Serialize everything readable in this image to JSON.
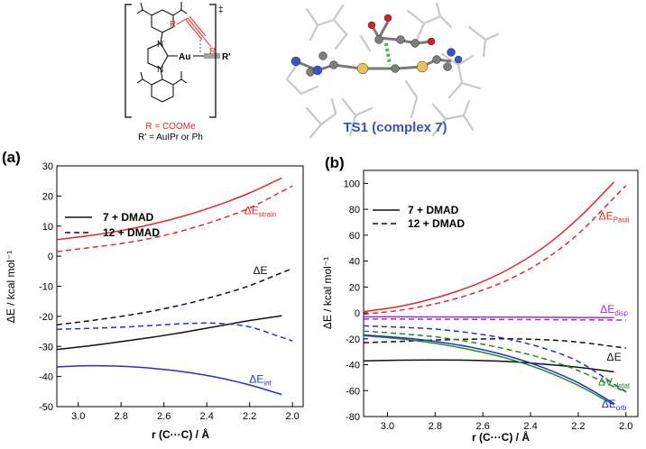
{
  "scheme": {
    "r_label": "R",
    "au_label": "Au",
    "rprime_label": "R'",
    "dagger": "‡",
    "caption_r": "R = COOMe",
    "caption_rprime": "R' = AuIPr or Ph"
  },
  "ts_label": "TS1 (complex 7)",
  "panel_a_label": "(a)",
  "panel_b_label": "(b)",
  "colors": {
    "red": "#e8262a",
    "blue": "#2630c8",
    "black": "#111111",
    "purple": "#9b30d0",
    "green": "#1f8a1f",
    "ts_blue": "#3a4fc4"
  },
  "chart_data": [
    {
      "type": "line",
      "panel": "(a)",
      "xlabel": "r (C···C) / Å",
      "ylabel": "ΔE / kcal mol⁻¹",
      "xlim": [
        3.1,
        1.95
      ],
      "ylim": [
        -50,
        30
      ],
      "xticks": [
        "3.0",
        "2.8",
        "2.6",
        "2.4",
        "2.2",
        "2.0"
      ],
      "yticks": [
        "30",
        "20",
        "10",
        "0",
        "-10",
        "-20",
        "-30",
        "-40",
        "-50"
      ],
      "legend": {
        "placement": "top-left",
        "solid": "7 + DMAD",
        "dashed": "12 + DMAD"
      },
      "x": [
        3.1,
        2.95,
        2.8,
        2.65,
        2.5,
        2.35,
        2.2,
        2.05
      ],
      "x_dashed_end": 2.0,
      "annotations": [
        {
          "base": "ΔE",
          "sub": "strain",
          "color": "red",
          "x": 2.15,
          "y": 14
        },
        {
          "base": "ΔE",
          "sub": "",
          "color": "black",
          "x": 2.15,
          "y": -6
        },
        {
          "base": "ΔE",
          "sub": "int",
          "color": "blue",
          "x": 2.15,
          "y": -42
        }
      ],
      "series": [
        {
          "color": "red",
          "style": "solid",
          "values": [
            5.5,
            6.8,
            8.5,
            10.7,
            13.5,
            16.9,
            21.0,
            26.0
          ]
        },
        {
          "color": "red",
          "style": "dashed",
          "values": [
            1.5,
            2.8,
            4.2,
            6.1,
            8.7,
            12.0,
            16.0,
            21.5
          ]
        },
        {
          "color": "black",
          "style": "solid",
          "values": [
            -31.0,
            -29.8,
            -28.4,
            -26.9,
            -25.2,
            -23.3,
            -21.4,
            -19.8
          ]
        },
        {
          "color": "black",
          "style": "dashed",
          "values": [
            -22.8,
            -21.5,
            -20.0,
            -18.2,
            -15.9,
            -13.1,
            -9.8,
            -5.5
          ]
        },
        {
          "color": "blue",
          "style": "solid",
          "values": [
            -36.8,
            -36.4,
            -36.6,
            -37.3,
            -38.5,
            -40.3,
            -42.8,
            -46.0
          ]
        },
        {
          "color": "blue",
          "style": "dashed",
          "values": [
            -24.3,
            -24.0,
            -23.6,
            -23.0,
            -22.4,
            -22.3,
            -23.5,
            -27.0
          ]
        }
      ]
    },
    {
      "type": "line",
      "panel": "(b)",
      "xlabel": "r (C···C) / Å",
      "ylabel": "ΔE / kcal mol⁻¹",
      "xlim": [
        3.1,
        1.95
      ],
      "ylim": [
        -80,
        110
      ],
      "xticks": [
        "3.0",
        "2.8",
        "2.6",
        "2.4",
        "2.2",
        "2.0"
      ],
      "yticks": [
        "100",
        "80",
        "60",
        "40",
        "20",
        "0",
        "-20",
        "-40",
        "-60",
        "-80"
      ],
      "legend": {
        "placement": "top-left",
        "solid": "7 + DMAD",
        "dashed": "12 + DMAD"
      },
      "x": [
        3.1,
        2.95,
        2.8,
        2.65,
        2.5,
        2.35,
        2.2,
        2.05
      ],
      "x_dashed_end": 2.0,
      "annotations": [
        {
          "base": "ΔE",
          "sub": "Pauli",
          "color": "red",
          "x": 2.05,
          "y": 72
        },
        {
          "base": "ΔE",
          "sub": "disp",
          "color": "purple",
          "x": 2.05,
          "y": 0
        },
        {
          "base": "ΔE",
          "sub": "",
          "color": "black",
          "x": 2.05,
          "y": -37
        },
        {
          "base": "ΔV",
          "sub": "elstat",
          "color": "green",
          "x": 2.05,
          "y": -56
        },
        {
          "base": "ΔE",
          "sub": "orb",
          "color": "blue",
          "x": 2.05,
          "y": -73
        }
      ],
      "series": [
        {
          "color": "red",
          "style": "solid",
          "values": [
            1.0,
            5.0,
            11.5,
            20.5,
            33.0,
            50.0,
            73.0,
            101.0
          ]
        },
        {
          "color": "red",
          "style": "dashed",
          "values": [
            -1.0,
            2.0,
            7.0,
            14.5,
            25.0,
            40.0,
            61.0,
            89.0
          ]
        },
        {
          "color": "purple",
          "style": "solid",
          "values": [
            -3.0,
            -3.0,
            -3.1,
            -3.2,
            -3.3,
            -3.4,
            -3.5,
            -3.7
          ]
        },
        {
          "color": "purple",
          "style": "dashed",
          "values": [
            -4.8,
            -4.8,
            -4.9,
            -5.0,
            -5.1,
            -5.2,
            -5.3,
            -5.5
          ]
        },
        {
          "color": "black",
          "style": "solid",
          "values": [
            -37.0,
            -36.5,
            -36.3,
            -36.6,
            -37.5,
            -39.5,
            -42.0,
            -45.5
          ]
        },
        {
          "color": "black",
          "style": "dashed",
          "values": [
            -23.0,
            -22.0,
            -21.0,
            -20.3,
            -20.0,
            -20.6,
            -22.5,
            -26.0
          ]
        },
        {
          "color": "green",
          "style": "solid",
          "values": [
            -17.5,
            -20.0,
            -23.5,
            -28.5,
            -35.0,
            -44.0,
            -56.0,
            -71.0
          ]
        },
        {
          "color": "green",
          "style": "dashed",
          "values": [
            -14.0,
            -16.0,
            -18.5,
            -22.5,
            -28.0,
            -35.0,
            -44.5,
            -57.0
          ]
        },
        {
          "color": "blue",
          "style": "solid",
          "values": [
            -17.0,
            -19.0,
            -22.0,
            -26.5,
            -33.0,
            -42.0,
            -54.0,
            -70.0
          ]
        },
        {
          "color": "blue",
          "style": "dashed",
          "values": [
            -10.0,
            -11.0,
            -12.5,
            -15.5,
            -20.0,
            -27.0,
            -37.5,
            -55.0
          ]
        }
      ]
    }
  ]
}
